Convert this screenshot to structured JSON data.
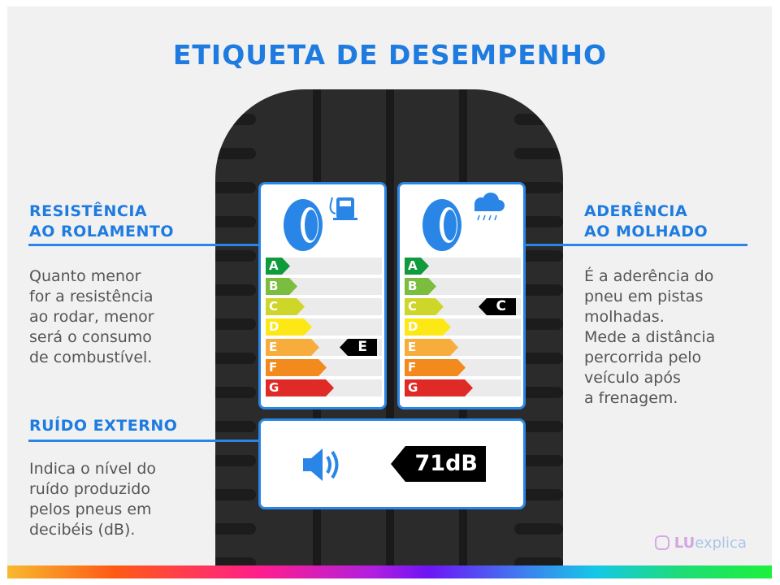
{
  "title": "ETIQUETA DE DESEMPENHO",
  "left": {
    "heading": [
      "RESISTÊNCIA",
      "AO ROLAMENTO"
    ],
    "body": [
      "Quanto menor",
      "for a resistência",
      "ao rodar, menor",
      "será o consumo",
      "de combustível."
    ]
  },
  "right": {
    "heading": [
      "ADERÊNCIA",
      "AO MOLHADO"
    ],
    "body": [
      "É a aderência do",
      "pneu em pistas",
      "molhadas.",
      "Mede a distância",
      "percorrida pelo",
      "veículo após",
      "a frenagem."
    ]
  },
  "noise": {
    "heading": "RUÍDO EXTERNO",
    "body": [
      "Indica o nível do",
      "ruído produzido",
      "pelos pneus em",
      "decibéis (dB)."
    ],
    "value": "71dB"
  },
  "grades": [
    "A",
    "B",
    "C",
    "D",
    "E",
    "F",
    "G"
  ],
  "grade_colors": [
    "#0f9a3c",
    "#7bbd3e",
    "#cfd62a",
    "#fde714",
    "#f6ad3c",
    "#f28a1e",
    "#e02a27"
  ],
  "fuel_card": {
    "icon": "fuel-pump-icon",
    "rating": "E"
  },
  "wet_card": {
    "icon": "rain-cloud-icon",
    "rating": "C"
  },
  "logo": {
    "text_bold": "LU",
    "text": "explica"
  },
  "accent": "#1e7be0"
}
